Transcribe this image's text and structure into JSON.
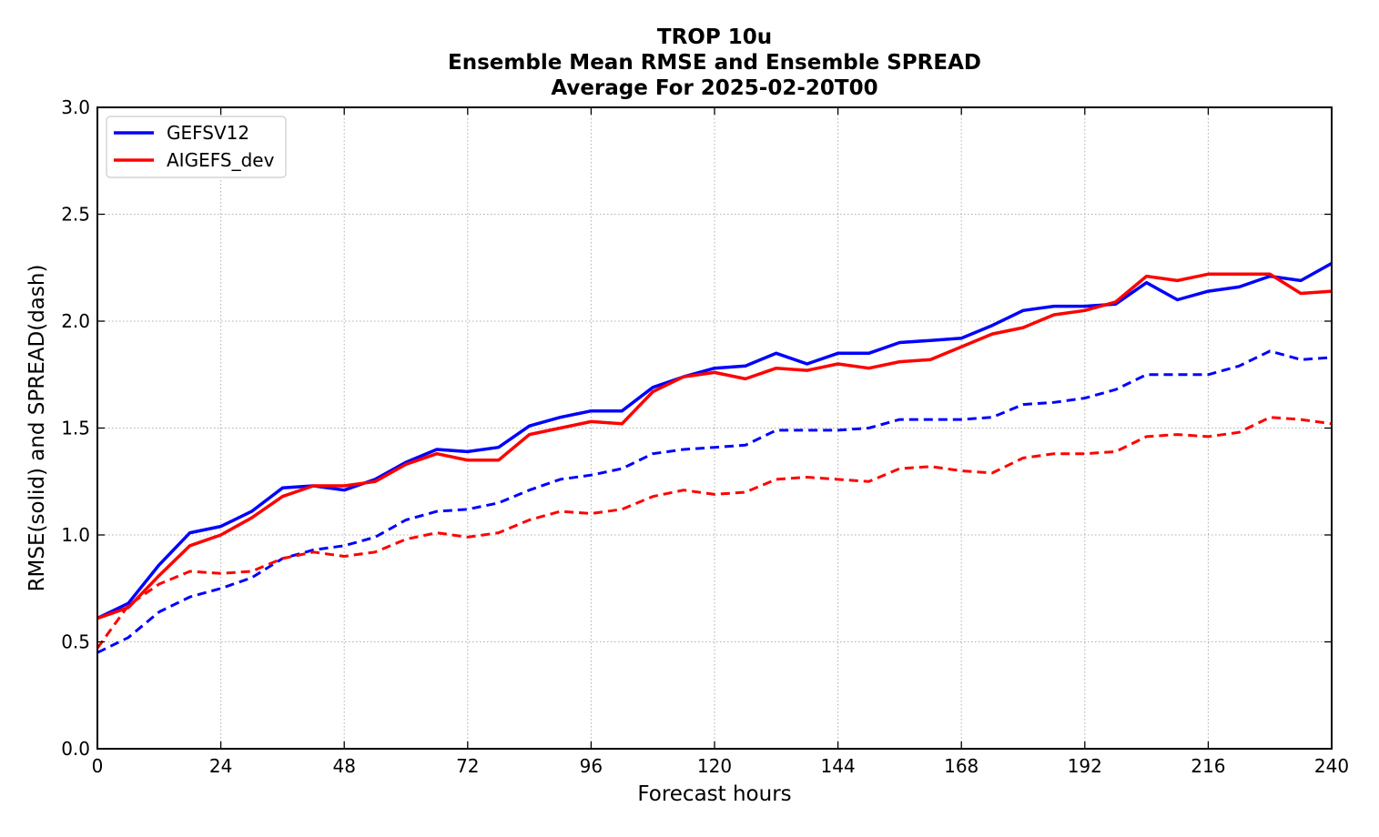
{
  "chart_data": {
    "type": "line",
    "title_lines": [
      "TROP 10u",
      "Ensemble Mean RMSE and Ensemble SPREAD",
      "Average For 2025-02-20T00"
    ],
    "xlabel": "Forecast hours",
    "ylabel": "RMSE(solid) and SPREAD(dash)",
    "xlim": [
      0,
      240
    ],
    "ylim": [
      0,
      3.0
    ],
    "xticks": [
      0,
      24,
      48,
      72,
      96,
      120,
      144,
      168,
      192,
      216,
      240
    ],
    "yticks": [
      0.0,
      0.5,
      1.0,
      1.5,
      2.0,
      2.5,
      3.0
    ],
    "ytick_labels": [
      "0.0",
      "0.5",
      "1.0",
      "1.5",
      "2.0",
      "2.5",
      "3.0"
    ],
    "grid": true,
    "legend_position": "top-left",
    "x": [
      0,
      6,
      12,
      18,
      24,
      30,
      36,
      42,
      48,
      54,
      60,
      66,
      72,
      78,
      84,
      90,
      96,
      102,
      108,
      114,
      120,
      126,
      132,
      138,
      144,
      150,
      156,
      162,
      168,
      174,
      180,
      186,
      192,
      198,
      204,
      210,
      216,
      222,
      228,
      234,
      240
    ],
    "legend": [
      {
        "name": "GEFSV12",
        "color": "#0000ff"
      },
      {
        "name": "AIGEFS_dev",
        "color": "#ff0000"
      }
    ],
    "series": [
      {
        "model": "GEFSV12",
        "metric": "RMSE",
        "color": "#0000ff",
        "dash": false,
        "values": [
          0.61,
          0.68,
          0.86,
          1.01,
          1.04,
          1.11,
          1.22,
          1.23,
          1.21,
          1.26,
          1.34,
          1.4,
          1.39,
          1.41,
          1.51,
          1.55,
          1.58,
          1.58,
          1.69,
          1.74,
          1.78,
          1.79,
          1.85,
          1.8,
          1.85,
          1.85,
          1.9,
          1.91,
          1.92,
          1.98,
          2.05,
          2.07,
          2.07,
          2.08,
          2.18,
          2.1,
          2.14,
          2.16,
          2.21,
          2.19,
          2.27
        ]
      },
      {
        "model": "AIGEFS_dev",
        "metric": "RMSE",
        "color": "#ff0000",
        "dash": false,
        "values": [
          0.61,
          0.66,
          0.81,
          0.95,
          1.0,
          1.08,
          1.18,
          1.23,
          1.23,
          1.25,
          1.33,
          1.38,
          1.35,
          1.35,
          1.47,
          1.5,
          1.53,
          1.52,
          1.67,
          1.74,
          1.76,
          1.73,
          1.78,
          1.77,
          1.8,
          1.78,
          1.81,
          1.82,
          1.88,
          1.94,
          1.97,
          2.03,
          2.05,
          2.09,
          2.21,
          2.19,
          2.22,
          2.22,
          2.22,
          2.13,
          2.14
        ]
      },
      {
        "model": "GEFSV12",
        "metric": "SPREAD",
        "color": "#0000ff",
        "dash": true,
        "values": [
          0.45,
          0.52,
          0.64,
          0.71,
          0.75,
          0.8,
          0.89,
          0.93,
          0.95,
          0.99,
          1.07,
          1.11,
          1.12,
          1.15,
          1.21,
          1.26,
          1.28,
          1.31,
          1.38,
          1.4,
          1.41,
          1.42,
          1.49,
          1.49,
          1.49,
          1.5,
          1.54,
          1.54,
          1.54,
          1.55,
          1.61,
          1.62,
          1.64,
          1.68,
          1.75,
          1.75,
          1.75,
          1.79,
          1.86,
          1.82,
          1.83
        ]
      },
      {
        "model": "AIGEFS_dev",
        "metric": "SPREAD",
        "color": "#ff0000",
        "dash": true,
        "values": [
          0.47,
          0.67,
          0.77,
          0.83,
          0.82,
          0.83,
          0.89,
          0.92,
          0.9,
          0.92,
          0.98,
          1.01,
          0.99,
          1.01,
          1.07,
          1.11,
          1.1,
          1.12,
          1.18,
          1.21,
          1.19,
          1.2,
          1.26,
          1.27,
          1.26,
          1.25,
          1.31,
          1.32,
          1.3,
          1.29,
          1.36,
          1.38,
          1.38,
          1.39,
          1.46,
          1.47,
          1.46,
          1.48,
          1.55,
          1.54,
          1.52
        ]
      }
    ]
  }
}
